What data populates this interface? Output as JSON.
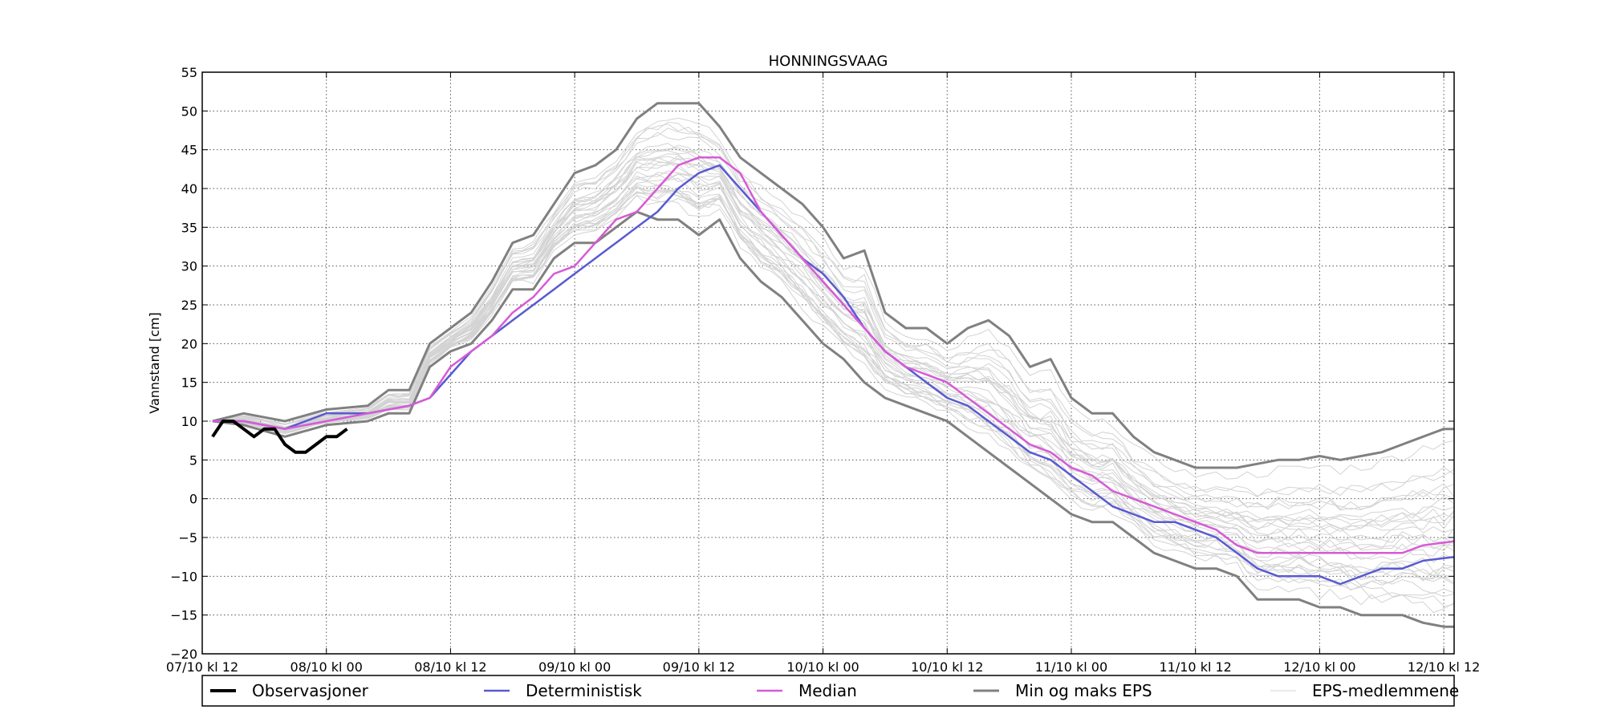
{
  "chart_data": {
    "type": "line",
    "title": "HONNINGSVAAG",
    "xlabel": "",
    "ylabel": "Vannstand [cm]",
    "xlim": [
      0,
      121
    ],
    "ylim": [
      -20,
      55
    ],
    "yticks": [
      -20,
      -15,
      -10,
      -5,
      0,
      5,
      10,
      15,
      20,
      25,
      30,
      35,
      40,
      45,
      50,
      55
    ],
    "xticks": [
      {
        "x": 0,
        "label": "07/10 kl 12"
      },
      {
        "x": 12,
        "label": "08/10 kl 00"
      },
      {
        "x": 24,
        "label": "08/10 kl 12"
      },
      {
        "x": 36,
        "label": "09/10 kl 00"
      },
      {
        "x": 48,
        "label": "09/10 kl 12"
      },
      {
        "x": 60,
        "label": "10/10 kl 00"
      },
      {
        "x": 72,
        "label": "10/10 kl 12"
      },
      {
        "x": 84,
        "label": "11/10 kl 00"
      },
      {
        "x": 96,
        "label": "11/10 kl 12"
      },
      {
        "x": 108,
        "label": "12/10 kl 00"
      },
      {
        "x": 120,
        "label": "12/10 kl 12"
      }
    ],
    "grid": true,
    "legend": "bottom",
    "series": [
      {
        "name": "Observasjoner",
        "color": "#000000",
        "x": [
          1,
          2,
          3,
          4,
          5,
          6,
          7,
          8,
          9,
          10,
          11,
          12,
          13,
          14
        ],
        "values": [
          8,
          10,
          10,
          9,
          8,
          9,
          9,
          7,
          6,
          6,
          7,
          8,
          8,
          9
        ]
      },
      {
        "name": "Deterministisk",
        "color": "#5a5ad2",
        "x": [
          1,
          4,
          8,
          12,
          16,
          20,
          22,
          24,
          26,
          28,
          30,
          32,
          34,
          36,
          38,
          40,
          42,
          44,
          46,
          48,
          50,
          52,
          54,
          56,
          58,
          60,
          62,
          64,
          66,
          68,
          70,
          72,
          74,
          76,
          78,
          80,
          82,
          84,
          86,
          88,
          90,
          92,
          94,
          96,
          98,
          100,
          102,
          104,
          106,
          108,
          110,
          112,
          114,
          116,
          118,
          121
        ],
        "values": [
          10,
          10,
          9,
          11,
          11,
          12,
          13,
          16,
          19,
          21,
          23,
          25,
          27,
          29,
          31,
          33,
          35,
          37,
          40,
          42,
          43,
          40,
          37,
          34,
          31,
          29,
          26,
          22,
          19,
          17,
          15,
          13,
          12,
          10,
          8,
          6,
          5,
          3,
          1,
          -1,
          -2,
          -3,
          -3,
          -4,
          -5,
          -7,
          -9,
          -10,
          -10,
          -10,
          -11,
          -10,
          -9,
          -9,
          -8,
          -7.5
        ]
      },
      {
        "name": "Median",
        "color": "#d65bd6",
        "x": [
          1,
          4,
          8,
          12,
          16,
          20,
          22,
          24,
          26,
          28,
          30,
          32,
          34,
          36,
          38,
          40,
          42,
          44,
          46,
          48,
          50,
          52,
          54,
          56,
          58,
          60,
          62,
          64,
          66,
          68,
          70,
          72,
          74,
          76,
          78,
          80,
          82,
          84,
          86,
          88,
          90,
          92,
          94,
          96,
          98,
          100,
          102,
          104,
          106,
          108,
          110,
          112,
          114,
          116,
          118,
          121
        ],
        "values": [
          10,
          10,
          9,
          10,
          11,
          12,
          13,
          17,
          19,
          21,
          24,
          26,
          29,
          30,
          33,
          36,
          37,
          40,
          43,
          44,
          44,
          42,
          37,
          34,
          31,
          28,
          25,
          22,
          19,
          17,
          16,
          15,
          13,
          11,
          9,
          7,
          6,
          4,
          3,
          1,
          0,
          -1,
          -2,
          -3,
          -4,
          -6,
          -7,
          -7,
          -7,
          -7,
          -7,
          -7,
          -7,
          -7,
          -6,
          -5.5
        ]
      },
      {
        "name": "Min og maks EPS",
        "color": "#808080",
        "x": [
          1,
          4,
          8,
          12,
          16,
          18,
          20,
          22,
          24,
          26,
          28,
          30,
          32,
          34,
          36,
          38,
          40,
          42,
          44,
          46,
          48,
          50,
          52,
          54,
          56,
          58,
          60,
          62,
          64,
          66,
          68,
          70,
          72,
          74,
          76,
          78,
          80,
          82,
          84,
          86,
          88,
          90,
          92,
          94,
          96,
          98,
          100,
          102,
          104,
          106,
          108,
          110,
          112,
          114,
          116,
          118,
          120,
          121
        ],
        "values": [
          10,
          11,
          10,
          11.5,
          12,
          14,
          14,
          20,
          22,
          24,
          28,
          33,
          34,
          38,
          42,
          43,
          45,
          49,
          51,
          51,
          51,
          48,
          44,
          42,
          40,
          38,
          35,
          31,
          32,
          24,
          22,
          22,
          20,
          22,
          23,
          21,
          17,
          18,
          13,
          11,
          11,
          8,
          6,
          5,
          4,
          4,
          4,
          4.5,
          5,
          5,
          5.5,
          5,
          5.5,
          6,
          7,
          8,
          9,
          9
        ]
      },
      {
        "name": "",
        "color": "#808080",
        "x": [
          1,
          4,
          8,
          12,
          16,
          18,
          20,
          22,
          24,
          26,
          28,
          30,
          32,
          34,
          36,
          38,
          40,
          42,
          44,
          46,
          48,
          50,
          52,
          54,
          56,
          58,
          60,
          62,
          64,
          66,
          68,
          70,
          72,
          74,
          76,
          78,
          80,
          82,
          84,
          86,
          88,
          90,
          92,
          94,
          96,
          98,
          100,
          102,
          104,
          106,
          108,
          110,
          112,
          114,
          116,
          118,
          120,
          121
        ],
        "values": [
          10,
          9.5,
          8,
          9.5,
          10,
          11,
          11,
          17,
          19,
          20,
          23,
          27,
          27,
          31,
          33,
          33,
          35,
          37,
          36,
          36,
          34,
          36,
          31,
          28,
          26,
          23,
          20,
          18,
          15,
          13,
          12,
          11,
          10,
          8,
          6,
          4,
          2,
          0,
          -2,
          -3,
          -3,
          -5,
          -7,
          -8,
          -9,
          -9,
          -10,
          -13,
          -13,
          -13,
          -14,
          -14,
          -15,
          -15,
          -15,
          -16,
          -16.5,
          -16.5
        ]
      }
    ],
    "ensemble": {
      "name": "EPS-medlemmene",
      "color": "#d3d3d3",
      "members": 30
    }
  }
}
